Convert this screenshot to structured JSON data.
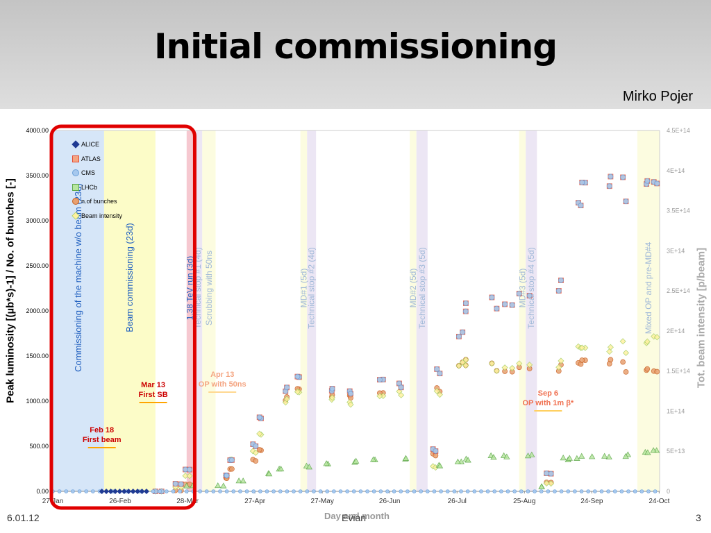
{
  "slide": {
    "title": "Initial commissioning",
    "author": "Mirko Pojer",
    "date": "6.01.12",
    "venue": "Evian",
    "page_number": "3"
  },
  "chart_data": {
    "type": "scatter",
    "xlabel": "Day and month",
    "ylabel_left": "Peak luminosity [(µb*s)-1]   /   No. of bunches [-]",
    "ylabel_right": "Tot. beam intensity [p/beam]",
    "x_ticks": [
      "27-Jan",
      "26-Feb",
      "28-Mar",
      "27-Apr",
      "27-May",
      "26-Jun",
      "26-Jul",
      "25-Aug",
      "24-Sep",
      "24-Oct"
    ],
    "x_range_days": [
      0,
      272
    ],
    "ylim_left": [
      0,
      4000
    ],
    "ylim_right": [
      0,
      450000000000000.0
    ],
    "y_ticks_left": [
      "0.00",
      "500.00",
      "1000.00",
      "1500.00",
      "2000.00",
      "2500.00",
      "3000.00",
      "3500.00",
      "4000.00"
    ],
    "y_ticks_right": [
      "0",
      "5E+13",
      "1E+14",
      "1.5E+14",
      "2E+14",
      "2.5E+14",
      "3E+14",
      "3.5E+14",
      "4E+14",
      "4.5E+14"
    ],
    "legend": [
      {
        "name": "ALICE",
        "color": "#1f3a93",
        "shape": "diamond"
      },
      {
        "name": "ATLAS",
        "color": "#f4a582",
        "shape": "square",
        "stroke": "#e34a33"
      },
      {
        "name": "CMS",
        "color": "#a6c8ee",
        "shape": "circle",
        "stroke": "#6a9fd8"
      },
      {
        "name": "LHCb",
        "color": "#b8e6a0",
        "shape": "triangle",
        "stroke": "#5ea84a"
      },
      {
        "name": "n.of bunches",
        "color": "#e8a070",
        "shape": "dot",
        "stroke": "#c86020"
      },
      {
        "name": "Beam intensity",
        "color": "#fff2a0",
        "shape": "diamond",
        "stroke": "#a9d06a"
      }
    ],
    "periods": [
      {
        "label": "Commissioning of the machine w/o beam (23d)",
        "start": 0,
        "end": 23,
        "fill": "#d6e6f8",
        "text_color": "#1f5fbf"
      },
      {
        "label": "Beam commissioning (23d)",
        "start": 23,
        "end": 46,
        "fill": "#fcfcc8",
        "text_color": "#1f5fbf"
      },
      {
        "label": "1.38 TeV run (3d)",
        "start": 60,
        "end": 63,
        "fill": "#f6c8d0",
        "text_color": "#1f5fbf"
      },
      {
        "label": "Technical stop #1 (4d)",
        "start": 63,
        "end": 67,
        "fill": "#ece6f4",
        "text_color": "#9fb8d8"
      },
      {
        "label": "Scrubbing with 50ns",
        "start": 67,
        "end": 73,
        "fill": "#fcfce0",
        "text_color": "#9fb8d8"
      },
      {
        "label": "MD#1 (5d)",
        "start": 111,
        "end": 114,
        "fill": "#fcfce0",
        "text_color": "#9fb8d8"
      },
      {
        "label": "Technical stop #2 (4d)",
        "start": 114,
        "end": 118,
        "fill": "#ece6f4",
        "text_color": "#9fb8d8"
      },
      {
        "label": "MD#2 (5d)",
        "start": 160,
        "end": 163,
        "fill": "#fcfce0",
        "text_color": "#9fb8d8"
      },
      {
        "label": "Technical stop #3 (5d)",
        "start": 163,
        "end": 168,
        "fill": "#ece6f4",
        "text_color": "#9fb8d8"
      },
      {
        "label": "MD#3 (5d)",
        "start": 209,
        "end": 212,
        "fill": "#fcfce0",
        "text_color": "#9fb8d8"
      },
      {
        "label": "Technical stop #4 (5d)",
        "start": 212,
        "end": 217,
        "fill": "#ece6f4",
        "text_color": "#9fb8d8"
      },
      {
        "label": "Mixed OP and pre-MD#4",
        "start": 262,
        "end": 272,
        "fill": "#fcfce0",
        "text_color": "#9fb8d8"
      }
    ],
    "annotations": [
      {
        "lines": [
          "Feb 18",
          "First beam"
        ],
        "day": 22,
        "color": "#cc0000",
        "line_color": "#ffa500"
      },
      {
        "lines": [
          "Mar 13",
          "First SB"
        ],
        "day": 45,
        "color": "#cc0000",
        "line_color": "#ffa500"
      },
      {
        "lines": [
          "Apr 13",
          "OP with 50ns"
        ],
        "day": 76,
        "color": "#f4a582",
        "line_color": "#ffd890"
      },
      {
        "lines": [
          "Sep 6",
          "OP with 1m β*"
        ],
        "day": 222,
        "color": "#f07050",
        "line_color": "#ffd060"
      }
    ],
    "highlight_box": {
      "start_day": 0,
      "end_day": 63,
      "color": "#e00000"
    },
    "series_approx": {
      "lumi_atlas_cms": [
        [
          46,
          0
        ],
        [
          57,
          80
        ],
        [
          60,
          250
        ],
        [
          76,
          180
        ],
        [
          82,
          350
        ],
        [
          88,
          520
        ],
        [
          95,
          800
        ],
        [
          104,
          1100
        ],
        [
          112,
          1230
        ],
        [
          125,
          1120
        ],
        [
          135,
          1150
        ],
        [
          146,
          1250
        ],
        [
          158,
          1200
        ],
        [
          170,
          450
        ],
        [
          175,
          1300
        ],
        [
          181,
          1700
        ],
        [
          188,
          1970
        ],
        [
          196,
          2090
        ],
        [
          205,
          2150
        ],
        [
          212,
          2200
        ],
        [
          222,
          200
        ],
        [
          228,
          2300
        ],
        [
          234,
          3100
        ],
        [
          240,
          3250
        ],
        [
          248,
          3300
        ],
        [
          258,
          3350
        ],
        [
          264,
          3500
        ],
        [
          272,
          3550
        ]
      ],
      "lumi_lhcb": [
        [
          60,
          60
        ],
        [
          76,
          60
        ],
        [
          84,
          120
        ],
        [
          95,
          200
        ],
        [
          104,
          250
        ],
        [
          112,
          280
        ],
        [
          125,
          300
        ],
        [
          135,
          320
        ],
        [
          146,
          340
        ],
        [
          158,
          360
        ],
        [
          175,
          300
        ],
        [
          181,
          330
        ],
        [
          188,
          360
        ],
        [
          196,
          380
        ],
        [
          205,
          380
        ],
        [
          212,
          390
        ],
        [
          222,
          50
        ],
        [
          228,
          360
        ],
        [
          234,
          380
        ],
        [
          240,
          390
        ],
        [
          248,
          390
        ],
        [
          258,
          400
        ],
        [
          264,
          420
        ],
        [
          272,
          430
        ]
      ],
      "n_bunches": [
        [
          46,
          0
        ],
        [
          57,
          10
        ],
        [
          60,
          80
        ],
        [
          76,
          150
        ],
        [
          82,
          250
        ],
        [
          88,
          350
        ],
        [
          95,
          450
        ],
        [
          104,
          1000
        ],
        [
          112,
          1100
        ],
        [
          125,
          1050
        ],
        [
          135,
          1100
        ],
        [
          146,
          1100
        ],
        [
          158,
          1200
        ],
        [
          170,
          400
        ],
        [
          175,
          1100
        ],
        [
          181,
          1380
        ],
        [
          188,
          1380
        ],
        [
          196,
          1380
        ],
        [
          205,
          1380
        ],
        [
          212,
          1380
        ],
        [
          222,
          100
        ],
        [
          228,
          1380
        ],
        [
          234,
          1380
        ],
        [
          240,
          1380
        ],
        [
          248,
          1380
        ],
        [
          258,
          1380
        ],
        [
          264,
          1380
        ],
        [
          272,
          1380
        ]
      ],
      "beam_intensity": [
        [
          46,
          0.0
        ],
        [
          57,
          5000000000000.0
        ],
        [
          60,
          20000000000000.0
        ],
        [
          76,
          20000000000000.0
        ],
        [
          82,
          40000000000000.0
        ],
        [
          88,
          50000000000000.0
        ],
        [
          95,
          70000000000000.0
        ],
        [
          104,
          110000000000000.0
        ],
        [
          112,
          120000000000000.0
        ],
        [
          125,
          115000000000000.0
        ],
        [
          135,
          115000000000000.0
        ],
        [
          146,
          120000000000000.0
        ],
        [
          158,
          125000000000000.0
        ],
        [
          170,
          30000000000000.0
        ],
        [
          175,
          120000000000000.0
        ],
        [
          181,
          155000000000000.0
        ],
        [
          188,
          155000000000000.0
        ],
        [
          196,
          155000000000000.0
        ],
        [
          205,
          160000000000000.0
        ],
        [
          212,
          160000000000000.0
        ],
        [
          222,
          10000000000000.0
        ],
        [
          228,
          160000000000000.0
        ],
        [
          234,
          175000000000000.0
        ],
        [
          240,
          170000000000000.0
        ],
        [
          248,
          170000000000000.0
        ],
        [
          258,
          180000000000000.0
        ],
        [
          264,
          190000000000000.0
        ],
        [
          272,
          200000000000000.0
        ]
      ]
    }
  }
}
